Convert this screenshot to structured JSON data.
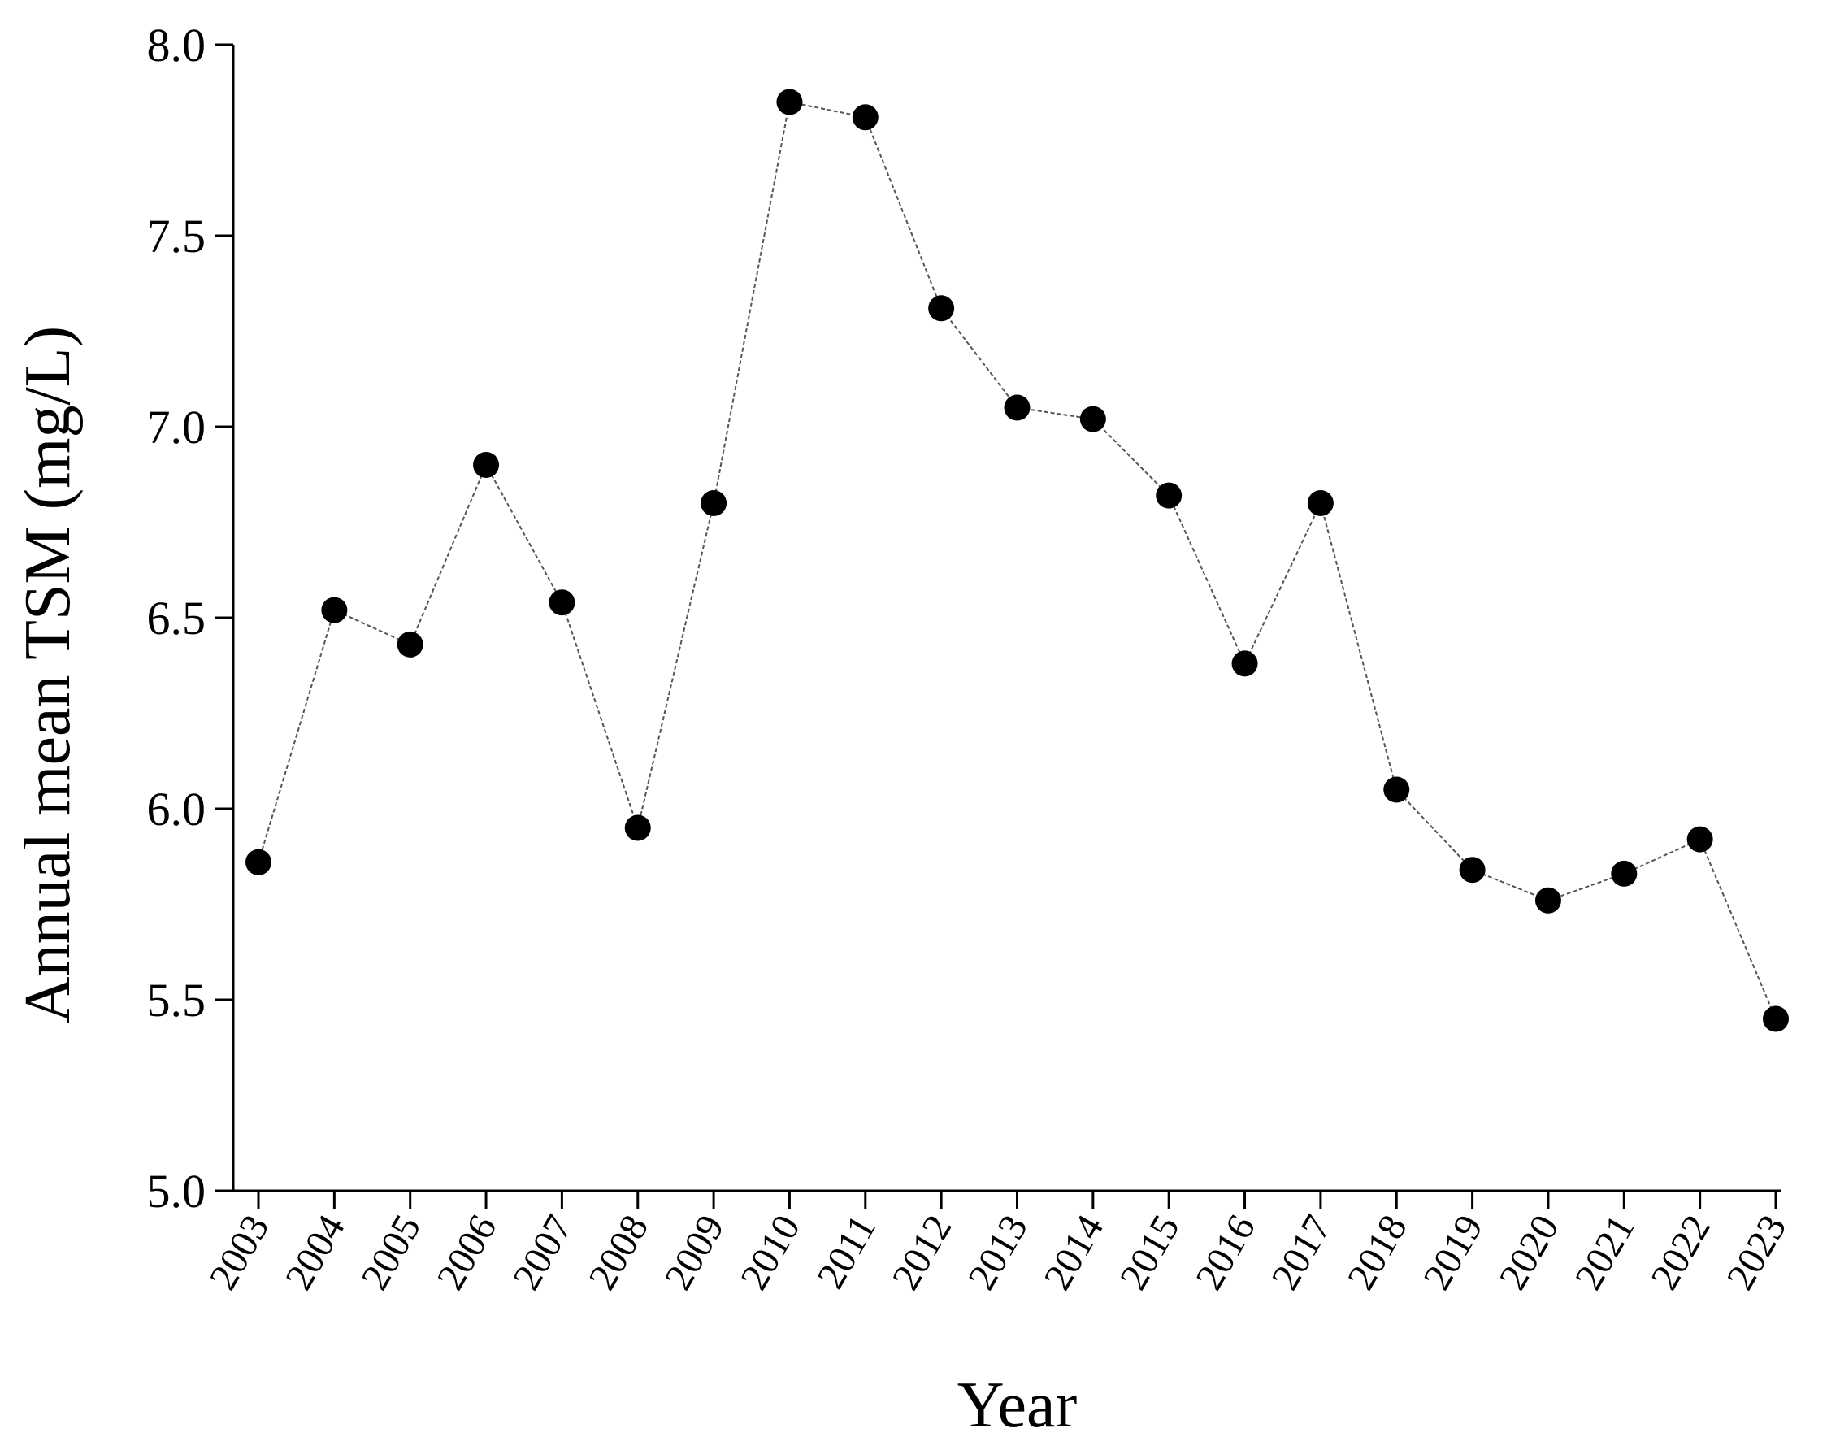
{
  "chart_data": {
    "type": "line",
    "title": "",
    "xlabel": "Year",
    "ylabel": "Annual mean TSM (mg/L)",
    "ylim": [
      5.0,
      8.0
    ],
    "yticks": [
      "5.0",
      "5.5",
      "6.0",
      "6.5",
      "7.0",
      "7.5",
      "8.0"
    ],
    "grid": false,
    "categories": [
      "2003",
      "2004",
      "2005",
      "2006",
      "2007",
      "2008",
      "2009",
      "2010",
      "2011",
      "2012",
      "2013",
      "2014",
      "2015",
      "2016",
      "2017",
      "2018",
      "2019",
      "2020",
      "2021",
      "2022",
      "2023"
    ],
    "series": [
      {
        "values": [
          5.86,
          6.52,
          6.43,
          6.9,
          6.54,
          5.95,
          6.8,
          7.85,
          7.81,
          7.31,
          7.05,
          7.02,
          6.82,
          6.38,
          6.8,
          6.05,
          5.84,
          5.76,
          5.83,
          5.92,
          5.45
        ],
        "color": "#000000"
      }
    ]
  }
}
